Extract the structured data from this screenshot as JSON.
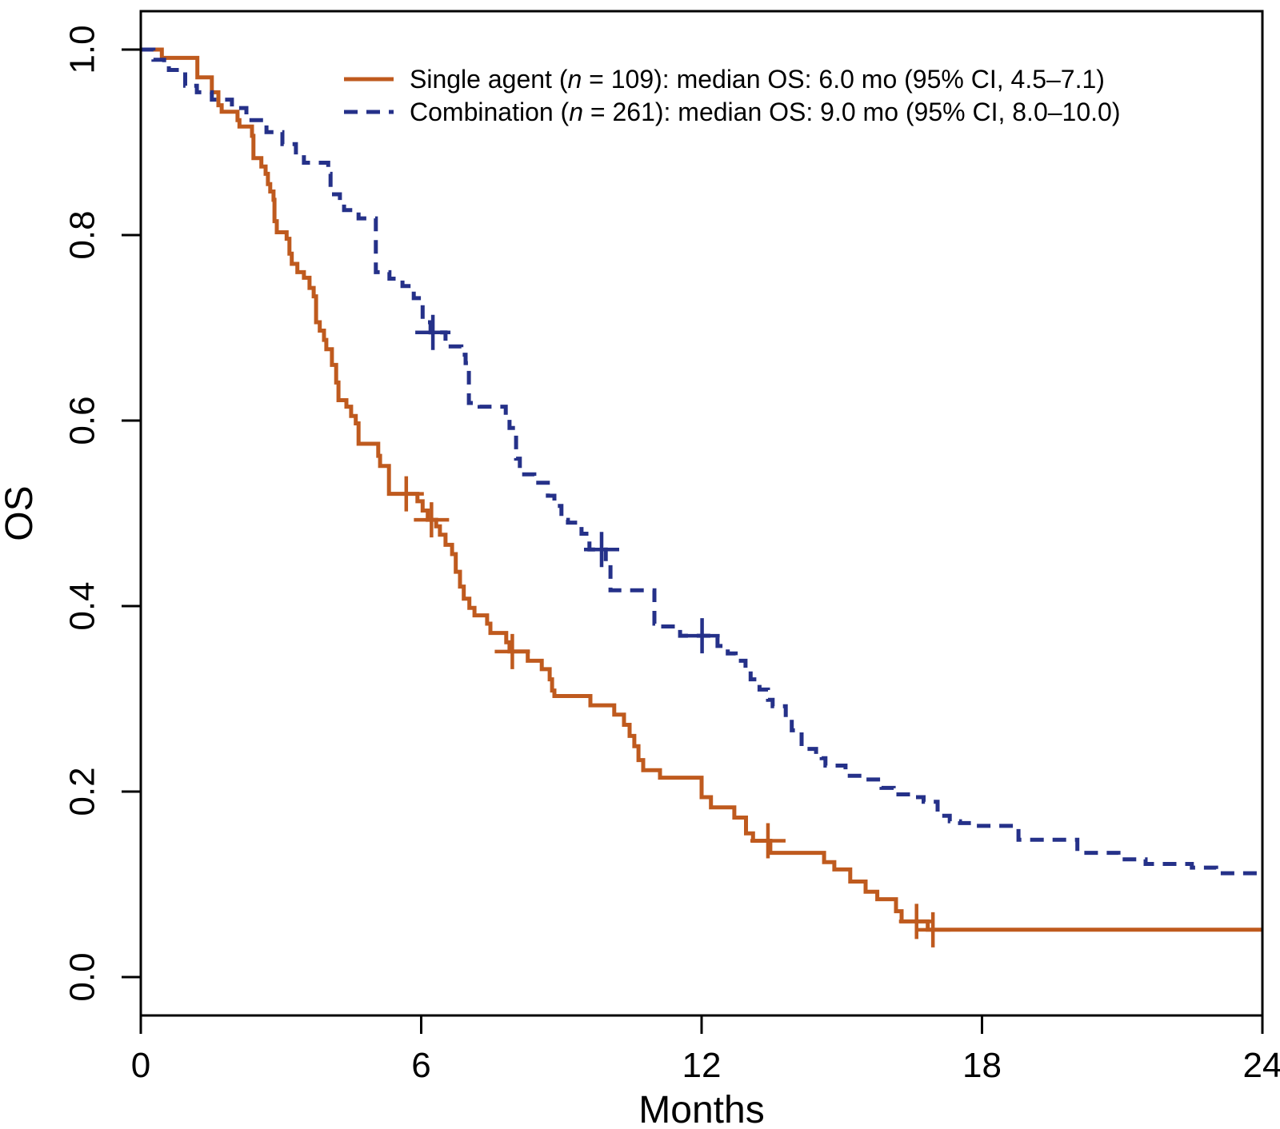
{
  "figure": {
    "background": "#ffffff",
    "box_color": "#000000",
    "text_color": "#000000"
  },
  "x_axis": {
    "label": "Months",
    "tick_labels": [
      "0",
      "6",
      "12",
      "18",
      "24"
    ]
  },
  "y_axis": {
    "label": "OS",
    "tick_labels": [
      "1.0",
      "0.8",
      "0.6",
      "0.4",
      "0.2",
      "0.0"
    ]
  },
  "legend": {
    "items": [
      {
        "pre": "Single agent (",
        "n_symbol": "n",
        "post": " = 109): median OS: 6.0 mo (95% CI, 4.5–7.1)",
        "full_label": "Single agent (n = 109): median OS: 6.0 mo (95% CI, 4.5–7.1)"
      },
      {
        "pre": "Combination (",
        "n_symbol": "n",
        "post": " = 261): median OS: 9.0 mo (95% CI, 8.0–10.0)",
        "full_label": "Combination (n = 261): median OS: 9.0 mo (95% CI, 8.0–10.0)"
      }
    ]
  },
  "chart_data": {
    "type": "line",
    "subtype": "kaplan-meier-step",
    "title": "",
    "xlabel": "Months",
    "ylabel": "OS",
    "xlim": [
      0,
      24
    ],
    "ylim": [
      0,
      1
    ],
    "x_ticks": [
      0,
      6,
      12,
      18,
      24
    ],
    "y_ticks": [
      1.0,
      0.8,
      0.6,
      0.4,
      0.2,
      0.0
    ],
    "grid": false,
    "legend_position": "top-center",
    "series": [
      {
        "id": "single-agent",
        "name": "Single agent",
        "n": 109,
        "median_os_mo": 6.0,
        "ci_95": "4.5-7.1",
        "color": "#bf5a1e",
        "line_style": "solid",
        "steps": [
          [
            0,
            1.0
          ],
          [
            0.45,
            0.991
          ],
          [
            1.21,
            0.97
          ],
          [
            1.52,
            0.954
          ],
          [
            1.66,
            0.94
          ],
          [
            1.73,
            0.933
          ],
          [
            2.07,
            0.924
          ],
          [
            2.11,
            0.917
          ],
          [
            2.38,
            0.907
          ],
          [
            2.41,
            0.883
          ],
          [
            2.58,
            0.874
          ],
          [
            2.67,
            0.866
          ],
          [
            2.72,
            0.855
          ],
          [
            2.77,
            0.847
          ],
          [
            2.84,
            0.838
          ],
          [
            2.86,
            0.815
          ],
          [
            2.91,
            0.803
          ],
          [
            3.12,
            0.796
          ],
          [
            3.18,
            0.78
          ],
          [
            3.23,
            0.769
          ],
          [
            3.35,
            0.76
          ],
          [
            3.49,
            0.754
          ],
          [
            3.61,
            0.743
          ],
          [
            3.7,
            0.734
          ],
          [
            3.75,
            0.706
          ],
          [
            3.83,
            0.697
          ],
          [
            3.92,
            0.687
          ],
          [
            3.97,
            0.677
          ],
          [
            4.09,
            0.66
          ],
          [
            4.18,
            0.641
          ],
          [
            4.23,
            0.622
          ],
          [
            4.4,
            0.615
          ],
          [
            4.5,
            0.605
          ],
          [
            4.6,
            0.597
          ],
          [
            4.66,
            0.575
          ],
          [
            5.08,
            0.562
          ],
          [
            5.12,
            0.551
          ],
          [
            5.31,
            0.521
          ],
          [
            5.92,
            0.513
          ],
          [
            6.03,
            0.503
          ],
          [
            6.14,
            0.493
          ],
          [
            6.32,
            0.486
          ],
          [
            6.4,
            0.477
          ],
          [
            6.52,
            0.466
          ],
          [
            6.66,
            0.456
          ],
          [
            6.74,
            0.437
          ],
          [
            6.83,
            0.421
          ],
          [
            6.91,
            0.408
          ],
          [
            7.03,
            0.398
          ],
          [
            7.14,
            0.39
          ],
          [
            7.41,
            0.381
          ],
          [
            7.48,
            0.371
          ],
          [
            7.82,
            0.361
          ],
          [
            7.89,
            0.351
          ],
          [
            8.28,
            0.341
          ],
          [
            8.58,
            0.332
          ],
          [
            8.75,
            0.321
          ],
          [
            8.8,
            0.309
          ],
          [
            8.85,
            0.303
          ],
          [
            9.62,
            0.293
          ],
          [
            10.13,
            0.283
          ],
          [
            10.34,
            0.272
          ],
          [
            10.46,
            0.26
          ],
          [
            10.56,
            0.249
          ],
          [
            10.65,
            0.234
          ],
          [
            10.75,
            0.223
          ],
          [
            11.11,
            0.215
          ],
          [
            12.0,
            0.194
          ],
          [
            12.2,
            0.183
          ],
          [
            12.7,
            0.172
          ],
          [
            12.95,
            0.155
          ],
          [
            13.1,
            0.147
          ],
          [
            13.47,
            0.134
          ],
          [
            14.62,
            0.124
          ],
          [
            14.84,
            0.116
          ],
          [
            15.18,
            0.103
          ],
          [
            15.51,
            0.092
          ],
          [
            15.76,
            0.084
          ],
          [
            16.16,
            0.071
          ],
          [
            16.28,
            0.06
          ],
          [
            16.84,
            0.051
          ],
          [
            24,
            0.051
          ]
        ],
        "censor_marks": [
          [
            5.68,
            0.521
          ],
          [
            6.22,
            0.493
          ],
          [
            7.95,
            0.351
          ],
          [
            13.42,
            0.147
          ],
          [
            16.6,
            0.06
          ],
          [
            16.95,
            0.051
          ]
        ]
      },
      {
        "id": "combination",
        "name": "Combination",
        "n": 261,
        "median_os_mo": 9.0,
        "ci_95": "8.0-10.0",
        "color": "#253189",
        "line_style": "dashed",
        "dash": "17 11",
        "steps": [
          [
            0,
            1.0
          ],
          [
            0.27,
            0.989
          ],
          [
            0.5,
            0.985
          ],
          [
            0.6,
            0.978
          ],
          [
            0.95,
            0.961
          ],
          [
            1.2,
            0.954
          ],
          [
            1.52,
            0.946
          ],
          [
            1.95,
            0.937
          ],
          [
            2.26,
            0.924
          ],
          [
            2.69,
            0.911
          ],
          [
            3.03,
            0.898
          ],
          [
            3.32,
            0.884
          ],
          [
            3.49,
            0.878
          ],
          [
            4.01,
            0.866
          ],
          [
            4.06,
            0.844
          ],
          [
            4.26,
            0.836
          ],
          [
            4.35,
            0.827
          ],
          [
            4.66,
            0.818
          ],
          [
            5.03,
            0.76
          ],
          [
            5.32,
            0.753
          ],
          [
            5.6,
            0.745
          ],
          [
            5.84,
            0.732
          ],
          [
            6.03,
            0.706
          ],
          [
            6.2,
            0.695
          ],
          [
            6.52,
            0.68
          ],
          [
            6.86,
            0.671
          ],
          [
            6.95,
            0.662
          ],
          [
            7.02,
            0.619
          ],
          [
            7.25,
            0.615
          ],
          [
            7.81,
            0.605
          ],
          [
            7.89,
            0.592
          ],
          [
            8.03,
            0.559
          ],
          [
            8.11,
            0.542
          ],
          [
            8.42,
            0.533
          ],
          [
            8.71,
            0.519
          ],
          [
            8.85,
            0.508
          ],
          [
            9.0,
            0.493
          ],
          [
            9.14,
            0.49
          ],
          [
            9.43,
            0.478
          ],
          [
            9.6,
            0.461
          ],
          [
            9.95,
            0.446
          ],
          [
            10.05,
            0.417
          ],
          [
            10.99,
            0.381
          ],
          [
            11.07,
            0.378
          ],
          [
            11.54,
            0.368
          ],
          [
            12.34,
            0.357
          ],
          [
            12.56,
            0.349
          ],
          [
            12.73,
            0.341
          ],
          [
            12.94,
            0.332
          ],
          [
            13.05,
            0.321
          ],
          [
            13.24,
            0.31
          ],
          [
            13.42,
            0.299
          ],
          [
            13.52,
            0.292
          ],
          [
            13.8,
            0.28
          ],
          [
            13.93,
            0.266
          ],
          [
            14.14,
            0.246
          ],
          [
            14.45,
            0.24
          ],
          [
            14.57,
            0.236
          ],
          [
            14.65,
            0.228
          ],
          [
            15.08,
            0.217
          ],
          [
            15.42,
            0.213
          ],
          [
            15.85,
            0.204
          ],
          [
            16.11,
            0.197
          ],
          [
            16.5,
            0.194
          ],
          [
            16.75,
            0.189
          ],
          [
            17.05,
            0.174
          ],
          [
            17.31,
            0.168
          ],
          [
            17.53,
            0.166
          ],
          [
            17.82,
            0.163
          ],
          [
            18.78,
            0.148
          ],
          [
            20.04,
            0.134
          ],
          [
            20.92,
            0.127
          ],
          [
            21.5,
            0.122
          ],
          [
            22.49,
            0.118
          ],
          [
            23.01,
            0.112
          ],
          [
            24,
            0.112
          ]
        ],
        "censor_marks": [
          [
            6.25,
            0.695
          ],
          [
            9.86,
            0.461
          ],
          [
            12.01,
            0.368
          ]
        ]
      }
    ]
  }
}
